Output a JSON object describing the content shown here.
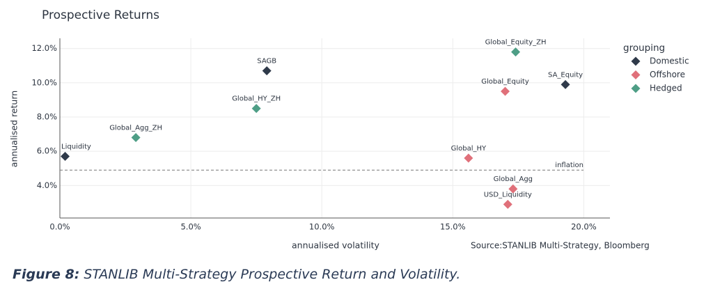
{
  "chart_data": {
    "type": "scatter",
    "title": "Prospective Returns",
    "x_label": "annualised volatility",
    "y_label": "annualised return",
    "source": "Source:STANLIB Multi-Strategy, Bloomberg",
    "legend_title": "grouping",
    "legend_position": "right",
    "grid": true,
    "xlim": [
      0,
      21
    ],
    "ylim": [
      2.1,
      12.6
    ],
    "xticks": [
      {
        "value": 0,
        "label": "0.0%"
      },
      {
        "value": 5,
        "label": "5.0%"
      },
      {
        "value": 10,
        "label": "10.0%"
      },
      {
        "value": 15,
        "label": "15.0%"
      },
      {
        "value": 20,
        "label": "20.0%"
      }
    ],
    "yticks": [
      {
        "value": 4,
        "label": "4.0%"
      },
      {
        "value": 6,
        "label": "6.0%"
      },
      {
        "value": 8,
        "label": "8.0%"
      },
      {
        "value": 10,
        "label": "10.0%"
      },
      {
        "value": 12,
        "label": "12.0%"
      }
    ],
    "hline": {
      "value": 4.9,
      "label": "inflation"
    },
    "series": [
      {
        "name": "Domestic",
        "color": "#2f3a4a",
        "x": [
          0.2,
          7.9,
          19.3
        ],
        "values": [
          5.7,
          10.7,
          9.9
        ],
        "labels": [
          "Liquidity",
          "SAGB",
          "SA_Equity"
        ]
      },
      {
        "name": "Offshore",
        "color": "#e0707a",
        "x": [
          17.0,
          15.6,
          17.3,
          17.1
        ],
        "values": [
          9.5,
          5.6,
          3.8,
          2.9
        ],
        "labels": [
          "Global_Equity",
          "Global_HY",
          "Global_Agg",
          "USD_Liquidity"
        ]
      },
      {
        "name": "Hedged",
        "color": "#4e9e86",
        "x": [
          2.9,
          7.5,
          17.4
        ],
        "values": [
          6.8,
          8.5,
          11.8
        ],
        "labels": [
          "Global_Agg_ZH",
          "Global_HY_ZH",
          "Global_Equity_ZH"
        ]
      }
    ]
  },
  "caption": {
    "label": "Figure 8:",
    "text": "STANLIB Multi-Strategy Prospective Return and Volatility."
  }
}
